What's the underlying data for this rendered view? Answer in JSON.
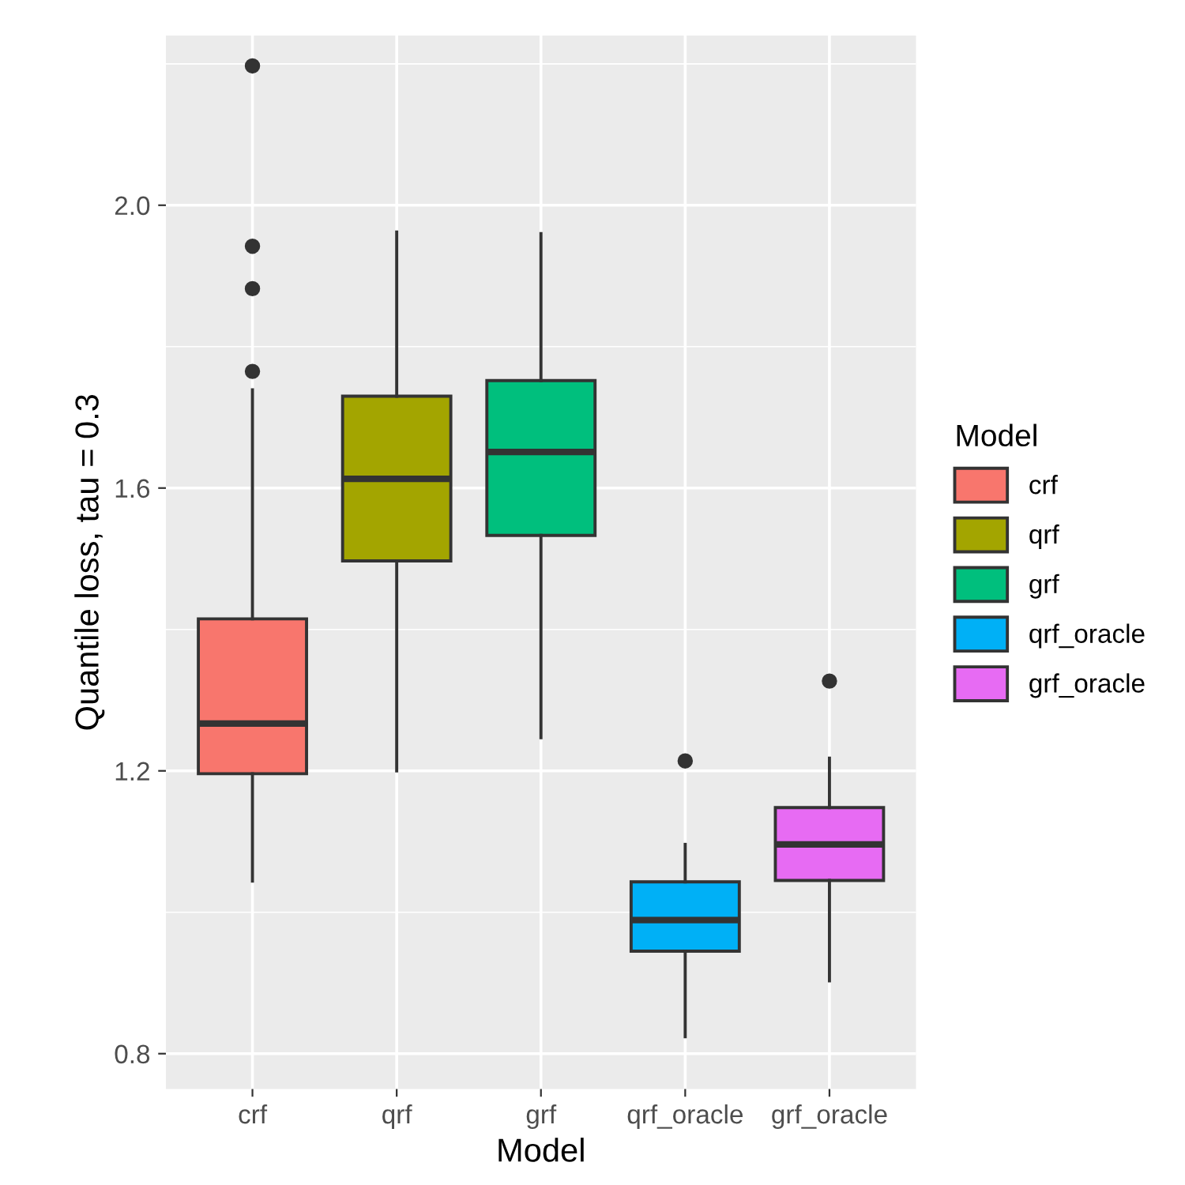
{
  "chart_data": {
    "type": "box",
    "xlabel": "Model",
    "ylabel": "Quantile loss, tau = 0.3",
    "legend_title": "Model",
    "legend": "right",
    "grid": true,
    "categories": [
      "crf",
      "qrf",
      "grf",
      "qrf_oracle",
      "grf_oracle"
    ],
    "series": [
      {
        "name": "crf",
        "color": "#f8766d",
        "boxes": [
          {
            "low": 1.044,
            "q1": 1.196,
            "median": 1.267,
            "q3": 1.415,
            "high": 1.739,
            "outliers": [
              1.765,
              1.882,
              1.942,
              2.197
            ]
          },
          null,
          null,
          null,
          null
        ]
      },
      {
        "name": "qrf",
        "color": "#a3a500",
        "boxes": [
          null,
          {
            "low": 1.2,
            "q1": 1.497,
            "median": 1.613,
            "q3": 1.73,
            "high": 1.962
          },
          null,
          null,
          null
        ]
      },
      {
        "name": "grf",
        "color": "#00bf7d",
        "boxes": [
          null,
          null,
          {
            "low": 1.247,
            "q1": 1.533,
            "median": 1.651,
            "q3": 1.752,
            "high": 1.96
          },
          null,
          null
        ]
      },
      {
        "name": "qrf_oracle",
        "color": "#00b0f6",
        "boxes": [
          null,
          null,
          null,
          {
            "low": 0.824,
            "q1": 0.945,
            "median": 0.989,
            "q3": 1.043,
            "high": 1.096,
            "outliers": [
              1.214
            ]
          },
          null
        ]
      },
      {
        "name": "grf_oracle",
        "color": "#e76bf3",
        "boxes": [
          null,
          null,
          null,
          null,
          {
            "low": 0.903,
            "q1": 1.045,
            "median": 1.096,
            "q3": 1.148,
            "high": 1.218,
            "outliers": [
              1.327
            ]
          }
        ]
      }
    ],
    "ylim": [
      0.75,
      2.24
    ],
    "yticks": [
      {
        "value": 0.8,
        "label": "0.8"
      },
      {
        "value": 1.2,
        "label": "1.2"
      },
      {
        "value": 1.6,
        "label": "1.6"
      },
      {
        "value": 2.0,
        "label": "2.0"
      }
    ]
  }
}
